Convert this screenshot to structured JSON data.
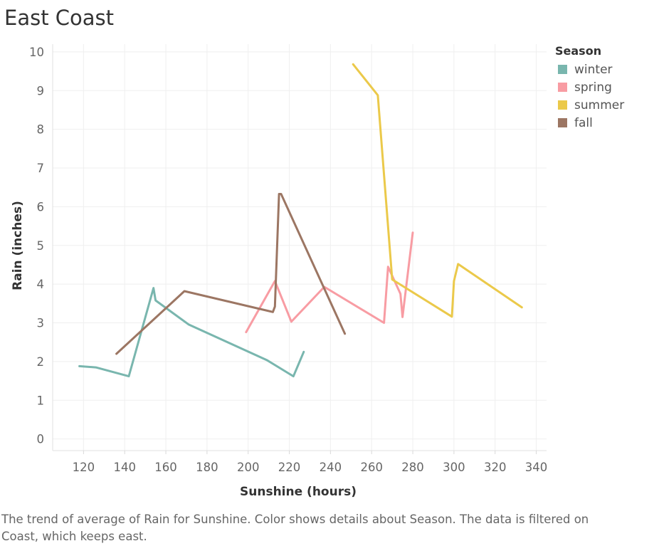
{
  "chart_data": {
    "type": "line",
    "title": "East Coast",
    "xlabel": "Sunshine (hours)",
    "ylabel": "Rain (inches)",
    "xlim": [
      105,
      345
    ],
    "ylim": [
      -0.3,
      10.2
    ],
    "xticks": [
      120,
      140,
      160,
      180,
      200,
      220,
      240,
      260,
      280,
      300,
      320,
      340
    ],
    "yticks": [
      0,
      1,
      2,
      3,
      4,
      5,
      6,
      7,
      8,
      9,
      10
    ],
    "grid": true,
    "legend_title": "Season",
    "legend_position": "top-right",
    "series": [
      {
        "name": "winter",
        "color": "#79b6ae",
        "points": [
          [
            118,
            1.88
          ],
          [
            126,
            1.85
          ],
          [
            142,
            1.62
          ],
          [
            154,
            3.9
          ],
          [
            155,
            3.58
          ],
          [
            171,
            2.96
          ],
          [
            209,
            2.04
          ],
          [
            222,
            1.62
          ],
          [
            227,
            2.25
          ]
        ]
      },
      {
        "name": "spring",
        "color": "#f89ca3",
        "points": [
          [
            199,
            2.76
          ],
          [
            213,
            4.08
          ],
          [
            221,
            3.03
          ],
          [
            237,
            3.93
          ],
          [
            266,
            3.0
          ],
          [
            268,
            4.45
          ],
          [
            274,
            3.75
          ],
          [
            275,
            3.15
          ],
          [
            280,
            5.33
          ]
        ]
      },
      {
        "name": "summer",
        "color": "#ebc94a",
        "points": [
          [
            251,
            9.68
          ],
          [
            263,
            8.88
          ],
          [
            270,
            4.12
          ],
          [
            299,
            3.16
          ],
          [
            300,
            4.08
          ],
          [
            302,
            4.52
          ],
          [
            333,
            3.4
          ]
        ]
      },
      {
        "name": "fall",
        "color": "#9c7663",
        "points": [
          [
            136,
            2.2
          ],
          [
            169,
            3.82
          ],
          [
            212,
            3.28
          ],
          [
            213,
            3.42
          ],
          [
            215,
            6.33
          ],
          [
            216,
            6.33
          ],
          [
            247,
            2.72
          ]
        ]
      }
    ]
  },
  "caption": "The trend of average of Rain for Sunshine.  Color shows details about Season. The data is filtered on Coast, which keeps east."
}
